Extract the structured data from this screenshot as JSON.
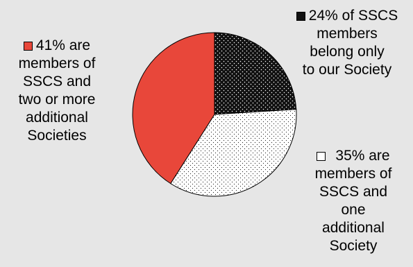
{
  "chart_data": {
    "type": "pie",
    "title": "",
    "slices": [
      {
        "value": 24,
        "label_lines": [
          "24% of SSCS",
          "members",
          "belong only",
          "to our Society"
        ],
        "color": "#111111",
        "pattern": "dots-dark"
      },
      {
        "value": 35,
        "label_lines": [
          "35% are",
          "members of",
          "SSCS and",
          "one",
          "additional",
          "Society"
        ],
        "color": "#ffffff",
        "pattern": "dots-light"
      },
      {
        "value": 41,
        "label_lines": [
          "41% are",
          "members of",
          "SSCS and",
          "two or more",
          "additional",
          "Societies"
        ],
        "color": "#e8473a",
        "pattern": "solid"
      }
    ]
  }
}
